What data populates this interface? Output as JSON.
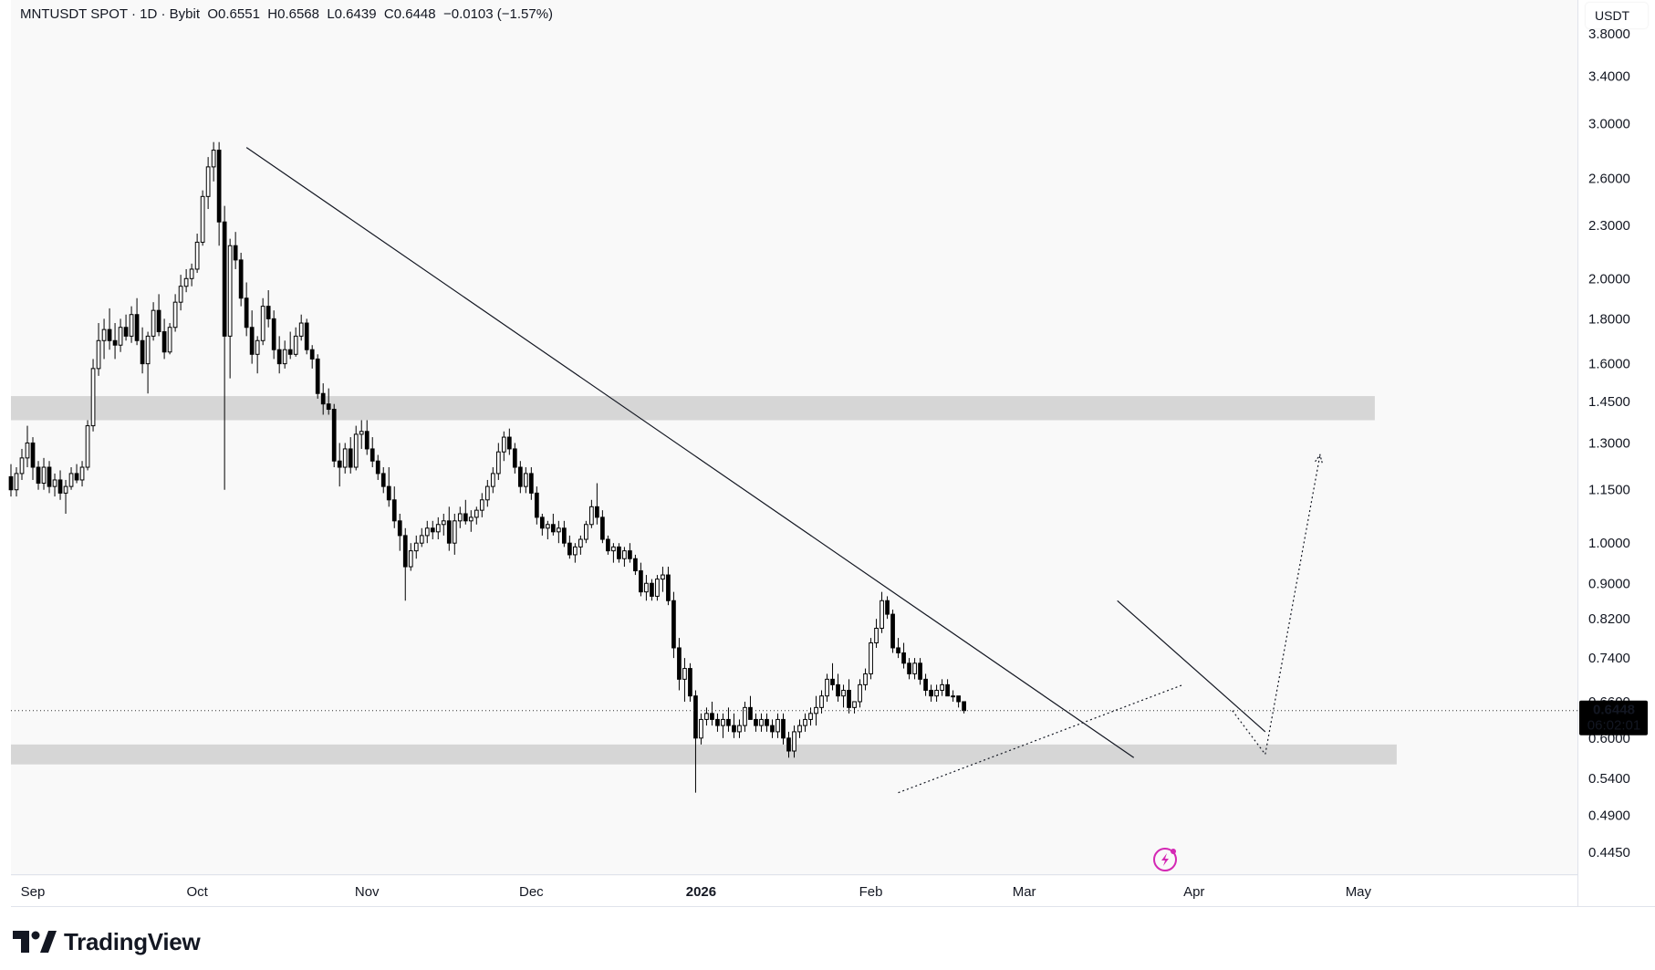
{
  "legend": {
    "symbol": "MNTUSDT SPOT",
    "separator1": " · ",
    "interval": "1D",
    "separator2": " · ",
    "exchange": "Bybit",
    "open": "O0.6551",
    "high": "H0.6568",
    "low": "L0.6439",
    "close": "C0.6448",
    "change": "−0.0103 (−1.57%)"
  },
  "price_axis": {
    "unit_label": "USDT",
    "current_price": "0.6448",
    "countdown": "06:02:01"
  },
  "branding": {
    "name": "TradingView"
  },
  "colors": {
    "background": "#f9f9f9",
    "candle": "#000000",
    "zone": "#d6d6d6",
    "price_tag": "#000000",
    "alert_icon": "#d428b4"
  },
  "icons": {
    "alert": "lightning-alert-icon",
    "logo": "tradingview-logo-icon"
  },
  "chart_data": {
    "type": "candlestick",
    "title": "MNTUSDT SPOT · 1D · Bybit",
    "scale": "log",
    "ylim": [
      0.42,
      4.15
    ],
    "x_range": [
      "2025-08-28",
      "2026-06-10"
    ],
    "y_ticks": [
      "3.8000",
      "3.4000",
      "3.0000",
      "2.6000",
      "2.3000",
      "2.0000",
      "1.8000",
      "1.6000",
      "1.4500",
      "1.3000",
      "1.1500",
      "1.0000",
      "0.9000",
      "0.8200",
      "0.7400",
      "0.6600",
      "0.6000",
      "0.5400",
      "0.4900",
      "0.4450"
    ],
    "x_ticks": [
      {
        "label": "Sep",
        "date": "2025-09-01"
      },
      {
        "label": "Oct",
        "date": "2025-10-01"
      },
      {
        "label": "Nov",
        "date": "2025-11-01"
      },
      {
        "label": "Dec",
        "date": "2025-12-01"
      },
      {
        "label": "2026",
        "date": "2026-01-01"
      },
      {
        "label": "Feb",
        "date": "2026-02-01"
      },
      {
        "label": "Mar",
        "date": "2026-03-01"
      },
      {
        "label": "Apr",
        "date": "2026-04-01"
      },
      {
        "label": "May",
        "date": "2026-05-01"
      }
    ],
    "candles_start": "2025-08-28",
    "candles": [
      [
        1.19,
        1.23,
        1.13,
        1.15
      ],
      [
        1.15,
        1.22,
        1.13,
        1.2
      ],
      [
        1.2,
        1.28,
        1.18,
        1.25
      ],
      [
        1.25,
        1.36,
        1.22,
        1.3
      ],
      [
        1.3,
        1.32,
        1.18,
        1.22
      ],
      [
        1.22,
        1.24,
        1.15,
        1.17
      ],
      [
        1.17,
        1.25,
        1.15,
        1.22
      ],
      [
        1.22,
        1.24,
        1.14,
        1.16
      ],
      [
        1.16,
        1.2,
        1.13,
        1.18
      ],
      [
        1.18,
        1.21,
        1.12,
        1.14
      ],
      [
        1.14,
        1.18,
        1.08,
        1.16
      ],
      [
        1.16,
        1.22,
        1.15,
        1.2
      ],
      [
        1.2,
        1.23,
        1.17,
        1.18
      ],
      [
        1.18,
        1.24,
        1.16,
        1.22
      ],
      [
        1.22,
        1.38,
        1.21,
        1.36
      ],
      [
        1.36,
        1.62,
        1.34,
        1.58
      ],
      [
        1.58,
        1.78,
        1.55,
        1.7
      ],
      [
        1.7,
        1.8,
        1.62,
        1.75
      ],
      [
        1.75,
        1.85,
        1.66,
        1.7
      ],
      [
        1.7,
        1.78,
        1.62,
        1.68
      ],
      [
        1.68,
        1.8,
        1.65,
        1.76
      ],
      [
        1.76,
        1.82,
        1.7,
        1.72
      ],
      [
        1.72,
        1.86,
        1.69,
        1.82
      ],
      [
        1.82,
        1.9,
        1.68,
        1.7
      ],
      [
        1.7,
        1.76,
        1.56,
        1.6
      ],
      [
        1.6,
        1.74,
        1.48,
        1.72
      ],
      [
        1.72,
        1.88,
        1.7,
        1.84
      ],
      [
        1.84,
        1.92,
        1.72,
        1.74
      ],
      [
        1.74,
        1.8,
        1.62,
        1.65
      ],
      [
        1.65,
        1.78,
        1.64,
        1.76
      ],
      [
        1.76,
        1.92,
        1.74,
        1.88
      ],
      [
        1.88,
        2.02,
        1.84,
        1.96
      ],
      [
        1.96,
        2.05,
        1.93,
        2.0
      ],
      [
        2.0,
        2.08,
        1.96,
        2.05
      ],
      [
        2.05,
        2.25,
        2.03,
        2.2
      ],
      [
        2.2,
        2.52,
        2.18,
        2.48
      ],
      [
        2.48,
        2.75,
        2.4,
        2.68
      ],
      [
        2.68,
        2.86,
        2.58,
        2.8
      ],
      [
        2.8,
        2.86,
        2.18,
        2.32
      ],
      [
        2.32,
        2.42,
        1.15,
        1.72
      ],
      [
        1.72,
        2.22,
        1.54,
        2.18
      ],
      [
        2.18,
        2.26,
        2.05,
        2.1
      ],
      [
        2.1,
        2.14,
        1.86,
        1.9
      ],
      [
        1.9,
        1.98,
        1.72,
        1.76
      ],
      [
        1.76,
        1.84,
        1.6,
        1.64
      ],
      [
        1.64,
        1.72,
        1.56,
        1.7
      ],
      [
        1.7,
        1.9,
        1.68,
        1.86
      ],
      [
        1.86,
        1.94,
        1.76,
        1.8
      ],
      [
        1.8,
        1.84,
        1.62,
        1.66
      ],
      [
        1.66,
        1.72,
        1.56,
        1.6
      ],
      [
        1.6,
        1.7,
        1.58,
        1.66
      ],
      [
        1.66,
        1.74,
        1.62,
        1.64
      ],
      [
        1.64,
        1.76,
        1.63,
        1.72
      ],
      [
        1.72,
        1.82,
        1.7,
        1.78
      ],
      [
        1.78,
        1.8,
        1.64,
        1.66
      ],
      [
        1.66,
        1.68,
        1.58,
        1.62
      ],
      [
        1.62,
        1.64,
        1.46,
        1.48
      ],
      [
        1.48,
        1.52,
        1.4,
        1.44
      ],
      [
        1.44,
        1.5,
        1.4,
        1.42
      ],
      [
        1.42,
        1.44,
        1.22,
        1.24
      ],
      [
        1.24,
        1.3,
        1.16,
        1.22
      ],
      [
        1.22,
        1.3,
        1.2,
        1.28
      ],
      [
        1.28,
        1.32,
        1.2,
        1.22
      ],
      [
        1.22,
        1.36,
        1.21,
        1.33
      ],
      [
        1.33,
        1.38,
        1.28,
        1.34
      ],
      [
        1.34,
        1.38,
        1.26,
        1.28
      ],
      [
        1.28,
        1.32,
        1.22,
        1.24
      ],
      [
        1.24,
        1.26,
        1.18,
        1.2
      ],
      [
        1.2,
        1.22,
        1.14,
        1.16
      ],
      [
        1.16,
        1.22,
        1.1,
        1.12
      ],
      [
        1.12,
        1.16,
        1.04,
        1.06
      ],
      [
        1.06,
        1.08,
        0.98,
        1.02
      ],
      [
        1.02,
        1.04,
        0.86,
        0.94
      ],
      [
        0.94,
        1.0,
        0.93,
        0.98
      ],
      [
        0.98,
        1.02,
        0.96,
        1.0
      ],
      [
        1.0,
        1.04,
        0.99,
        1.02
      ],
      [
        1.02,
        1.06,
        1.0,
        1.04
      ],
      [
        1.04,
        1.06,
        1.01,
        1.03
      ],
      [
        1.03,
        1.07,
        1.01,
        1.05
      ],
      [
        1.05,
        1.08,
        1.02,
        1.06
      ],
      [
        1.06,
        1.1,
        0.98,
        1.0
      ],
      [
        1.0,
        1.08,
        0.97,
        1.06
      ],
      [
        1.06,
        1.1,
        1.04,
        1.08
      ],
      [
        1.08,
        1.12,
        1.05,
        1.06
      ],
      [
        1.06,
        1.09,
        1.03,
        1.07
      ],
      [
        1.07,
        1.1,
        1.05,
        1.09
      ],
      [
        1.09,
        1.14,
        1.07,
        1.12
      ],
      [
        1.12,
        1.18,
        1.1,
        1.16
      ],
      [
        1.16,
        1.22,
        1.14,
        1.2
      ],
      [
        1.2,
        1.3,
        1.18,
        1.27
      ],
      [
        1.27,
        1.34,
        1.24,
        1.32
      ],
      [
        1.32,
        1.35,
        1.26,
        1.28
      ],
      [
        1.28,
        1.3,
        1.2,
        1.22
      ],
      [
        1.22,
        1.24,
        1.14,
        1.16
      ],
      [
        1.16,
        1.22,
        1.14,
        1.2
      ],
      [
        1.2,
        1.22,
        1.12,
        1.14
      ],
      [
        1.14,
        1.16,
        1.05,
        1.07
      ],
      [
        1.07,
        1.08,
        1.02,
        1.04
      ],
      [
        1.04,
        1.06,
        1.01,
        1.05
      ],
      [
        1.05,
        1.08,
        1.02,
        1.03
      ],
      [
        1.03,
        1.06,
        1.0,
        1.04
      ],
      [
        1.04,
        1.06,
        0.99,
        1.0
      ],
      [
        1.0,
        1.02,
        0.96,
        0.97
      ],
      [
        0.97,
        1.0,
        0.95,
        0.99
      ],
      [
        0.99,
        1.02,
        0.97,
        1.01
      ],
      [
        1.01,
        1.06,
        1.0,
        1.05
      ],
      [
        1.05,
        1.12,
        1.04,
        1.1
      ],
      [
        1.1,
        1.17,
        1.05,
        1.07
      ],
      [
        1.07,
        1.09,
        1.0,
        1.01
      ],
      [
        1.01,
        1.02,
        0.97,
        0.98
      ],
      [
        0.98,
        1.0,
        0.95,
        0.99
      ],
      [
        0.99,
        1.0,
        0.95,
        0.96
      ],
      [
        0.96,
        0.99,
        0.94,
        0.98
      ],
      [
        0.98,
        1.0,
        0.95,
        0.96
      ],
      [
        0.96,
        0.97,
        0.92,
        0.93
      ],
      [
        0.93,
        0.95,
        0.87,
        0.88
      ],
      [
        0.88,
        0.92,
        0.86,
        0.9
      ],
      [
        0.9,
        0.91,
        0.86,
        0.87
      ],
      [
        0.87,
        0.92,
        0.86,
        0.91
      ],
      [
        0.91,
        0.94,
        0.88,
        0.92
      ],
      [
        0.92,
        0.94,
        0.85,
        0.86
      ],
      [
        0.86,
        0.88,
        0.74,
        0.76
      ],
      [
        0.76,
        0.78,
        0.68,
        0.7
      ],
      [
        0.7,
        0.74,
        0.66,
        0.72
      ],
      [
        0.72,
        0.73,
        0.66,
        0.67
      ],
      [
        0.67,
        0.68,
        0.52,
        0.6
      ],
      [
        0.6,
        0.64,
        0.59,
        0.63
      ],
      [
        0.63,
        0.65,
        0.62,
        0.64
      ],
      [
        0.64,
        0.66,
        0.62,
        0.63
      ],
      [
        0.63,
        0.64,
        0.61,
        0.62
      ],
      [
        0.62,
        0.64,
        0.6,
        0.63
      ],
      [
        0.63,
        0.65,
        0.61,
        0.62
      ],
      [
        0.62,
        0.64,
        0.6,
        0.61
      ],
      [
        0.61,
        0.63,
        0.6,
        0.62
      ],
      [
        0.62,
        0.66,
        0.61,
        0.65
      ],
      [
        0.65,
        0.67,
        0.63,
        0.63
      ],
      [
        0.63,
        0.64,
        0.61,
        0.62
      ],
      [
        0.62,
        0.64,
        0.61,
        0.63
      ],
      [
        0.63,
        0.64,
        0.61,
        0.62
      ],
      [
        0.62,
        0.63,
        0.6,
        0.61
      ],
      [
        0.61,
        0.64,
        0.6,
        0.63
      ],
      [
        0.63,
        0.64,
        0.59,
        0.6
      ],
      [
        0.6,
        0.61,
        0.57,
        0.58
      ],
      [
        0.58,
        0.62,
        0.57,
        0.61
      ],
      [
        0.61,
        0.63,
        0.6,
        0.62
      ],
      [
        0.62,
        0.64,
        0.61,
        0.63
      ],
      [
        0.63,
        0.65,
        0.62,
        0.64
      ],
      [
        0.64,
        0.67,
        0.62,
        0.65
      ],
      [
        0.65,
        0.68,
        0.64,
        0.67
      ],
      [
        0.67,
        0.71,
        0.66,
        0.7
      ],
      [
        0.7,
        0.73,
        0.68,
        0.69
      ],
      [
        0.69,
        0.71,
        0.66,
        0.67
      ],
      [
        0.67,
        0.69,
        0.65,
        0.68
      ],
      [
        0.68,
        0.7,
        0.64,
        0.65
      ],
      [
        0.65,
        0.66,
        0.64,
        0.66
      ],
      [
        0.66,
        0.7,
        0.65,
        0.69
      ],
      [
        0.69,
        0.72,
        0.68,
        0.71
      ],
      [
        0.71,
        0.78,
        0.7,
        0.77
      ],
      [
        0.77,
        0.82,
        0.76,
        0.8
      ],
      [
        0.8,
        0.88,
        0.79,
        0.86
      ],
      [
        0.86,
        0.87,
        0.82,
        0.83
      ],
      [
        0.83,
        0.84,
        0.75,
        0.76
      ],
      [
        0.76,
        0.78,
        0.74,
        0.75
      ],
      [
        0.75,
        0.77,
        0.72,
        0.73
      ],
      [
        0.73,
        0.74,
        0.7,
        0.71
      ],
      [
        0.71,
        0.74,
        0.7,
        0.73
      ],
      [
        0.73,
        0.74,
        0.69,
        0.7
      ],
      [
        0.7,
        0.71,
        0.67,
        0.68
      ],
      [
        0.68,
        0.69,
        0.66,
        0.67
      ],
      [
        0.67,
        0.69,
        0.66,
        0.68
      ],
      [
        0.68,
        0.7,
        0.67,
        0.69
      ],
      [
        0.69,
        0.7,
        0.67,
        0.67
      ],
      [
        0.67,
        0.68,
        0.66,
        0.67
      ],
      [
        0.67,
        0.67,
        0.65,
        0.66
      ],
      [
        0.66,
        0.66,
        0.64,
        0.6448
      ]
    ],
    "zones": [
      {
        "start": "2025-08-28",
        "end": "2026-05-04",
        "low": 1.38,
        "high": 1.47
      },
      {
        "start": "2026-05-08",
        "end": "2026-05-09",
        "low": 0.56,
        "high": 0.59
      },
      {
        "start": "2025-08-28",
        "end": "2026-05-08",
        "low": 0.56,
        "high": 0.59
      }
    ],
    "trendlines": [
      {
        "style": "solid",
        "start": [
          "2025-10-10",
          2.82
        ],
        "end": [
          "2026-03-21",
          0.57
        ]
      },
      {
        "style": "solid",
        "start": [
          "2026-03-18",
          0.86
        ],
        "end": [
          "2026-04-14",
          0.61
        ]
      },
      {
        "style": "dotted",
        "start": [
          "2026-02-06",
          0.52
        ],
        "end": [
          "2026-03-30",
          0.69
        ]
      }
    ],
    "projection": [
      [
        "2026-04-08",
        0.6448
      ],
      [
        "2026-04-14",
        0.575
      ],
      [
        "2026-04-24",
        1.26
      ]
    ]
  }
}
